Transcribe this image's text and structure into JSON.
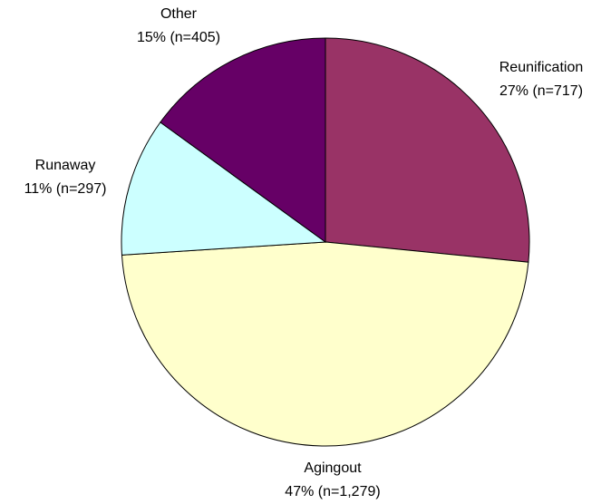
{
  "chart_data": {
    "type": "pie",
    "categories": [
      "Reunification",
      "Agingout",
      "Runaway",
      "Other"
    ],
    "values": [
      717,
      1279,
      297,
      405
    ],
    "value_labels": [
      "27% (n=717)",
      "47% (n=1,279)",
      "11% (n=297)",
      "15% (n=405)"
    ],
    "colors": [
      "#993366",
      "#ffffcc",
      "#ccffff",
      "#660066"
    ]
  }
}
